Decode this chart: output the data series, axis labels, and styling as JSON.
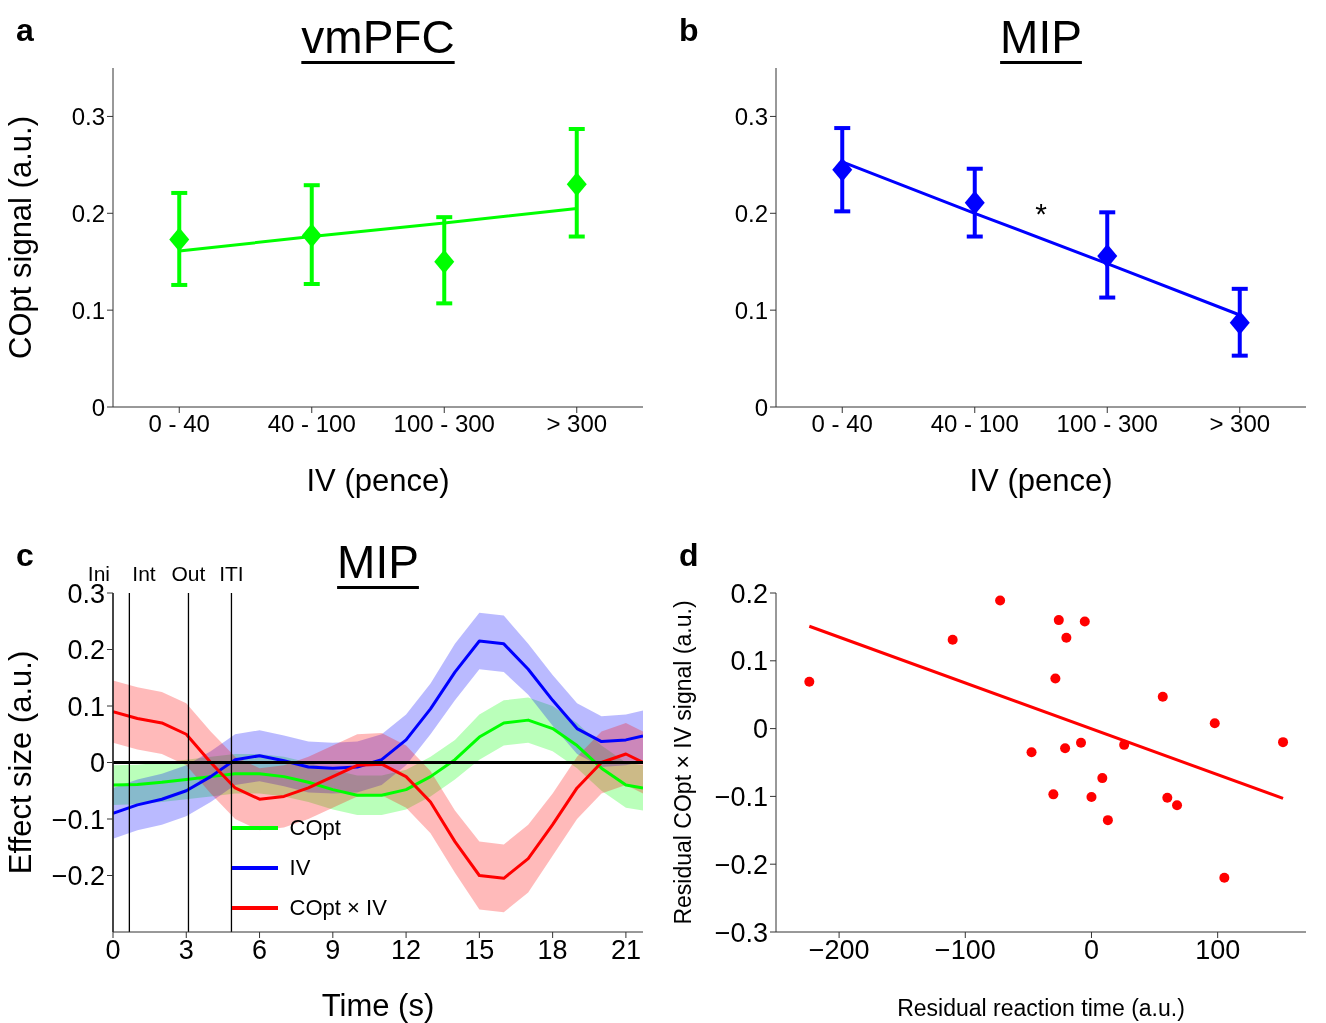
{
  "chart_data": [
    {
      "type": "scatter",
      "title": "vmPFC",
      "xlabel": "IV (pence)",
      "ylabel": "COpt signal (a.u.)",
      "annotations": [
        "a"
      ],
      "categories": [
        "0 - 40",
        "40 - 100",
        "100 - 300",
        "> 300"
      ],
      "ylim": [
        0,
        0.35
      ],
      "yticks": [
        0,
        0.1,
        0.2,
        0.3
      ],
      "series": [
        {
          "type": "scatter",
          "color": "#00ff00",
          "marker": "diamond",
          "values": [
            0.173,
            0.177,
            0.15,
            0.23
          ],
          "errors": [
            [
              0.126,
              0.221
            ],
            [
              0.127,
              0.229
            ],
            [
              0.107,
              0.196
            ],
            [
              0.176,
              0.287
            ]
          ]
        },
        {
          "type": "line",
          "color": "#00ff00",
          "values": [
            0.161,
            0.176,
            0.19,
            0.205
          ]
        }
      ]
    },
    {
      "type": "scatter",
      "title": "MIP",
      "xlabel": "IV (pence)",
      "annotations": [
        "b",
        "*"
      ],
      "categories": [
        "0 - 40",
        "40 - 100",
        "100 - 300",
        "> 300"
      ],
      "ylim": [
        0,
        0.35
      ],
      "yticks": [
        0,
        0.1,
        0.2,
        0.3
      ],
      "series": [
        {
          "type": "scatter",
          "color": "#0000ff",
          "marker": "diamond",
          "values": [
            0.245,
            0.211,
            0.156,
            0.087
          ],
          "errors": [
            [
              0.202,
              0.288
            ],
            [
              0.176,
              0.246
            ],
            [
              0.113,
              0.201
            ],
            [
              0.053,
              0.122
            ]
          ]
        },
        {
          "type": "line",
          "color": "#0000ff",
          "values": [
            0.253,
            0.2,
            0.148,
            0.095
          ]
        }
      ]
    },
    {
      "type": "line",
      "title": "MIP",
      "xlabel": "Time (s)",
      "ylabel": "Effect size (a.u.)",
      "annotations": [
        "c"
      ],
      "legend": "bottom",
      "xlim": [
        0,
        21.7
      ],
      "xticks": [
        0,
        3,
        6,
        9,
        12,
        15,
        18,
        21
      ],
      "ylim": [
        -0.3,
        0.3
      ],
      "yticks": [
        {
          "value": -0.2,
          "label": "−0.2"
        },
        {
          "value": -0.1,
          "label": "−0.1"
        },
        0,
        0.1,
        0.2,
        0.3
      ],
      "x": [
        0,
        1,
        2,
        3,
        4,
        5,
        6,
        7,
        8,
        9,
        10,
        11,
        12,
        13,
        14,
        15,
        16,
        17,
        18,
        19,
        20,
        21,
        21.7
      ],
      "ref_lines": [
        {
          "axis": "y",
          "value": 0,
          "color": "#000000"
        },
        {
          "axis": "x",
          "value": 0,
          "label": "Ini",
          "color": "#000000"
        },
        {
          "axis": "x",
          "value": 0.67,
          "label": "Int",
          "color": "#000000"
        },
        {
          "axis": "x",
          "value": 3.09,
          "label": "Out",
          "color": "#000000"
        },
        {
          "axis": "x",
          "value": 4.85,
          "label": "ITI",
          "color": "#000000"
        }
      ],
      "series": [
        {
          "name": "COpt",
          "color": "#00ff00",
          "values": [
            -0.04,
            -0.039,
            -0.035,
            -0.03,
            -0.025,
            -0.02,
            -0.02,
            -0.025,
            -0.035,
            -0.048,
            -0.058,
            -0.058,
            -0.048,
            -0.025,
            0.005,
            0.045,
            0.07,
            0.075,
            0.06,
            0.03,
            -0.01,
            -0.04,
            -0.045
          ],
          "lower": [
            -0.075,
            -0.074,
            -0.07,
            -0.065,
            -0.06,
            -0.055,
            -0.055,
            -0.06,
            -0.07,
            -0.083,
            -0.093,
            -0.093,
            -0.083,
            -0.06,
            -0.03,
            0.005,
            0.03,
            0.035,
            0.02,
            -0.01,
            -0.05,
            -0.08,
            -0.085
          ],
          "upper": [
            -0.005,
            -0.004,
            0,
            0.005,
            0.01,
            0.015,
            0.015,
            0.01,
            0,
            -0.013,
            -0.023,
            -0.023,
            -0.013,
            0.01,
            0.04,
            0.085,
            0.11,
            0.115,
            0.1,
            0.07,
            0.03,
            0,
            -0.005
          ]
        },
        {
          "name": "IV",
          "color": "#0000ff",
          "values": [
            -0.09,
            -0.075,
            -0.065,
            -0.05,
            -0.025,
            0.005,
            0.012,
            0.003,
            -0.008,
            -0.01,
            -0.008,
            0.005,
            0.04,
            0.095,
            0.16,
            0.215,
            0.21,
            0.165,
            0.11,
            0.06,
            0.037,
            0.04,
            0.047
          ],
          "lower": [
            -0.135,
            -0.12,
            -0.11,
            -0.095,
            -0.07,
            -0.04,
            -0.033,
            -0.042,
            -0.053,
            -0.055,
            -0.053,
            -0.04,
            -0.005,
            0.05,
            0.11,
            0.165,
            0.16,
            0.12,
            0.065,
            0.015,
            -0.008,
            -0.005,
            0.002
          ],
          "upper": [
            -0.045,
            -0.03,
            -0.02,
            -0.005,
            0.02,
            0.05,
            0.057,
            0.048,
            0.037,
            0.035,
            0.037,
            0.05,
            0.085,
            0.14,
            0.21,
            0.265,
            0.26,
            0.21,
            0.155,
            0.105,
            0.082,
            0.085,
            0.092
          ]
        },
        {
          "name": "COpt × IV",
          "color": "#ff0000",
          "values": [
            0.09,
            0.078,
            0.07,
            0.05,
            0,
            -0.045,
            -0.065,
            -0.06,
            -0.045,
            -0.025,
            -0.005,
            -0.003,
            -0.025,
            -0.07,
            -0.14,
            -0.2,
            -0.205,
            -0.17,
            -0.11,
            -0.045,
            0,
            0.015,
            0
          ],
          "lower": [
            0.035,
            0.023,
            0.015,
            -0.005,
            -0.055,
            -0.1,
            -0.12,
            -0.115,
            -0.1,
            -0.08,
            -0.06,
            -0.058,
            -0.08,
            -0.125,
            -0.195,
            -0.26,
            -0.265,
            -0.23,
            -0.165,
            -0.1,
            -0.055,
            -0.04,
            -0.055
          ],
          "upper": [
            0.145,
            0.133,
            0.125,
            0.105,
            0.055,
            0.01,
            -0.01,
            -0.005,
            0.01,
            0.03,
            0.05,
            0.052,
            0.03,
            -0.015,
            -0.085,
            -0.14,
            -0.145,
            -0.11,
            -0.055,
            0.01,
            0.055,
            0.07,
            0.055
          ]
        }
      ]
    },
    {
      "type": "scatter",
      "xlabel": "Residual reaction time (a.u.)",
      "ylabel": "Residual COpt × IV signal (a.u.)",
      "annotations": [
        "d"
      ],
      "xlim": [
        -250,
        170
      ],
      "xticks": [
        {
          "value": -200,
          "label": "−200"
        },
        {
          "value": -100,
          "label": "−100"
        },
        0,
        100
      ],
      "ylim": [
        -0.3,
        0.2
      ],
      "yticks": [
        {
          "value": -0.3,
          "label": "−0.3"
        },
        {
          "value": -0.2,
          "label": "−0.2"
        },
        {
          "value": -0.1,
          "label": "−0.1"
        },
        0,
        0.1,
        0.2
      ],
      "x": [
        -223.6,
        -110,
        -72.4,
        -47.5,
        -30.2,
        -28.6,
        -25.9,
        -20.9,
        -19.9,
        -8.3,
        -5.3,
        0,
        8.6,
        13,
        25.9,
        56.5,
        60.1,
        67.8,
        97.7,
        105.3,
        151.8
      ],
      "series": [
        {
          "type": "scatter",
          "color": "#ff0000",
          "marker": "circle",
          "values": [
            0.069,
            0.131,
            0.189,
            -0.035,
            -0.097,
            0.074,
            0.16,
            -0.029,
            0.134,
            -0.021,
            0.158,
            -0.101,
            -0.073,
            -0.135,
            -0.024,
            0.047,
            -0.102,
            -0.113,
            0.008,
            -0.22,
            -0.02
          ]
        },
        {
          "type": "line",
          "color": "#ff0000",
          "x": [
            -223.6,
            151.8
          ],
          "values": [
            0.151,
            -0.103
          ]
        }
      ]
    }
  ]
}
